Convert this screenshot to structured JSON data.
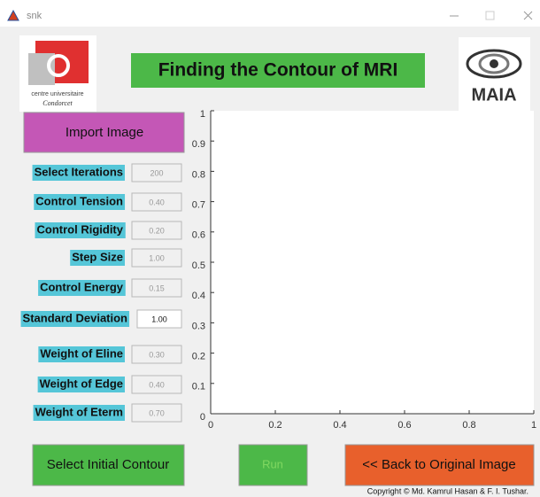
{
  "window": {
    "title": "snk"
  },
  "header": {
    "title": "Finding the Contour of MRI",
    "left_logo": [
      "centre universitaire",
      "Condorcet"
    ],
    "right_logo": "MAIA"
  },
  "buttons": {
    "import": "Import Image",
    "select_contour": "Select Initial Contour",
    "run": "Run",
    "back": "<< Back to Original Image"
  },
  "parameters": [
    {
      "label": "Select Iterations",
      "value": "200"
    },
    {
      "label": "Control Tension",
      "value": "0.40"
    },
    {
      "label": "Control Rigidity",
      "value": "0.20"
    },
    {
      "label": "Step Size",
      "value": "1.00"
    },
    {
      "label": "Control Energy",
      "value": "0.15"
    },
    {
      "label": "Standard Deviation",
      "value": "1.00",
      "active": true
    },
    {
      "label": "Weight of Eline",
      "value": "0.30"
    },
    {
      "label": "Weight of Edge",
      "value": "0.40"
    },
    {
      "label": "Weight of Eterm",
      "value": "0.70"
    }
  ],
  "axes": {
    "xlim": [
      0,
      1
    ],
    "ylim": [
      0,
      1
    ],
    "xticks": [
      0,
      0.2,
      0.4,
      0.6,
      0.8,
      1
    ],
    "yticks": [
      0,
      0.1,
      0.2,
      0.3,
      0.4,
      0.5,
      0.6,
      0.7,
      0.8,
      0.9,
      1
    ]
  },
  "footer": {
    "copyright": "Copyright © Md. Kamrul Hasan & F. I. Tushar."
  }
}
